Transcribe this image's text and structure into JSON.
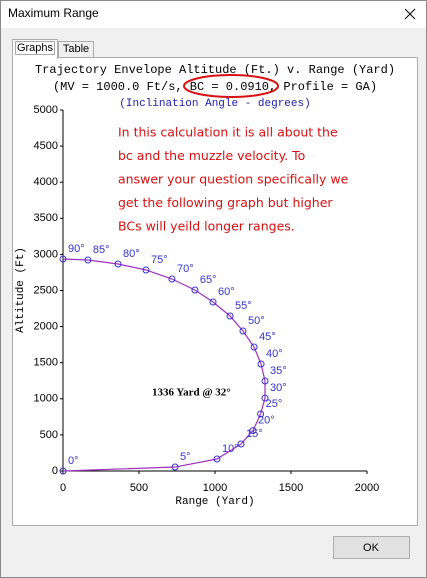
{
  "window": {
    "title": "Maximum Range"
  },
  "tabs": [
    "Graphs",
    "Table"
  ],
  "chart_data": {
    "type": "line",
    "title": "Trajectory Envelope Altitude (Ft.) v. Range (Yard)",
    "subtitle": "(MV = 1000.0 Ft/s, BC = 0.0910, Profile = GA)",
    "note": "(Inclination Angle - degrees)",
    "xlabel": "Range (Yard)",
    "ylabel": "Altitude (Ft)",
    "xlim": [
      0,
      2000
    ],
    "ylim": [
      0,
      5000
    ],
    "xticks": [
      0,
      500,
      1000,
      1500,
      2000
    ],
    "yticks": [
      0,
      500,
      1000,
      1500,
      2000,
      2500,
      3000,
      3500,
      4000,
      4500,
      5000
    ],
    "series": [
      {
        "color": "#a030c0",
        "marker_color": "#3434d0",
        "x": [
          0,
          737,
          1013,
          1171,
          1250,
          1300,
          1329,
          1329,
          1303,
          1257,
          1184,
          1099,
          987,
          868,
          717,
          546,
          362,
          164,
          0
        ],
        "values": [
          0,
          55,
          166,
          374,
          560,
          790,
          1010,
          1247,
          1482,
          1717,
          1939,
          2147,
          2341,
          2507,
          2659,
          2784,
          2867,
          2922,
          2936
        ],
        "point_labels": [
          "0°",
          "5°",
          "10°",
          "15°",
          "20°",
          "25°",
          "30°",
          "35°",
          "40°",
          "45°",
          "50°",
          "55°",
          "60°",
          "65°",
          "70°",
          "75°",
          "80°",
          "85°",
          "90°"
        ]
      }
    ],
    "annotation": "1336 Yard @ 32°",
    "comment_lines": [
      "In this calculation it is all about the",
      "bc and the muzzle velocity.  To",
      "answer your question specifically we",
      "get the following graph but higher",
      "BCs will yeild longer ranges."
    ]
  },
  "buttons": {
    "ok": "OK"
  }
}
